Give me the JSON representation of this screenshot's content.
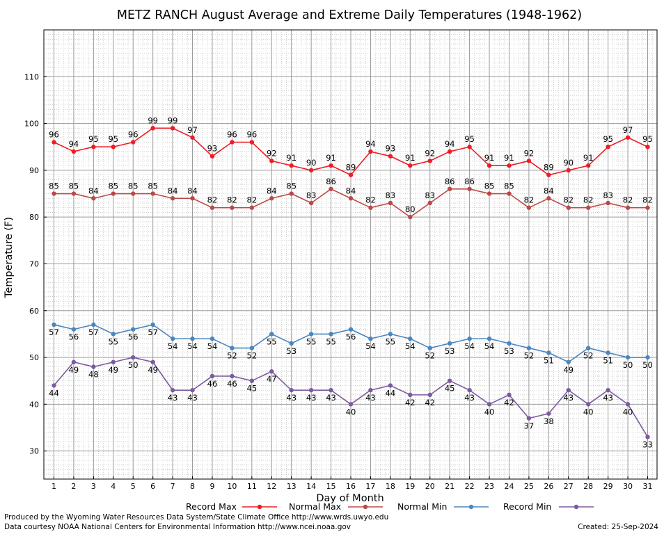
{
  "chart_data": {
    "type": "line",
    "title": "METZ RANCH August Average and Extreme Daily Temperatures (1948-1962)",
    "xlabel": "Day of Month",
    "ylabel": "Temperature (F)",
    "x": [
      1,
      2,
      3,
      4,
      5,
      6,
      7,
      8,
      9,
      10,
      11,
      12,
      13,
      14,
      15,
      16,
      17,
      18,
      19,
      20,
      21,
      22,
      23,
      24,
      25,
      26,
      27,
      28,
      29,
      30,
      31
    ],
    "xlim": [
      0.5,
      31.5
    ],
    "ylim": [
      24,
      120
    ],
    "yticks": [
      30,
      40,
      50,
      60,
      70,
      80,
      90,
      100,
      110
    ],
    "grid": true,
    "legend_position": "bottom",
    "series": [
      {
        "name": "Record Max",
        "color": "#ee1c25",
        "label_pos": "above",
        "values": [
          96,
          94,
          95,
          95,
          96,
          99,
          99,
          97,
          93,
          96,
          96,
          92,
          91,
          90,
          91,
          89,
          94,
          93,
          91,
          92,
          94,
          95,
          91,
          91,
          92,
          89,
          90,
          91,
          95,
          97,
          95
        ]
      },
      {
        "name": "Normal Max",
        "color": "#b94a48",
        "label_pos": "above",
        "values": [
          85,
          85,
          84,
          85,
          85,
          85,
          84,
          84,
          82,
          82,
          82,
          84,
          85,
          83,
          86,
          84,
          82,
          83,
          80,
          83,
          86,
          86,
          85,
          85,
          82,
          84,
          82,
          82,
          83,
          82,
          82
        ]
      },
      {
        "name": "Normal Min",
        "color": "#4a86c0",
        "label_pos": "below",
        "values": [
          57,
          56,
          57,
          55,
          56,
          57,
          54,
          54,
          54,
          52,
          52,
          55,
          53,
          55,
          55,
          56,
          54,
          55,
          54,
          52,
          53,
          54,
          54,
          53,
          52,
          51,
          49,
          52,
          51,
          50,
          50
        ]
      },
      {
        "name": "Record Min",
        "color": "#7d5aa0",
        "label_pos": "below",
        "values": [
          44,
          49,
          48,
          49,
          50,
          49,
          43,
          43,
          46,
          46,
          45,
          47,
          43,
          43,
          43,
          40,
          43,
          44,
          42,
          42,
          45,
          43,
          40,
          42,
          37,
          38,
          43,
          40,
          43,
          40,
          33
        ]
      }
    ]
  },
  "footer": {
    "produced_by": "Produced by the Wyoming Water Resources Data System/State Climate Office http://www.wrds.uwyo.edu",
    "data_courtesy": "Data courtesy NOAA National Centers for Environmental Information http://www.ncei.noaa.gov",
    "created": "Created:  25-Sep-2024"
  }
}
